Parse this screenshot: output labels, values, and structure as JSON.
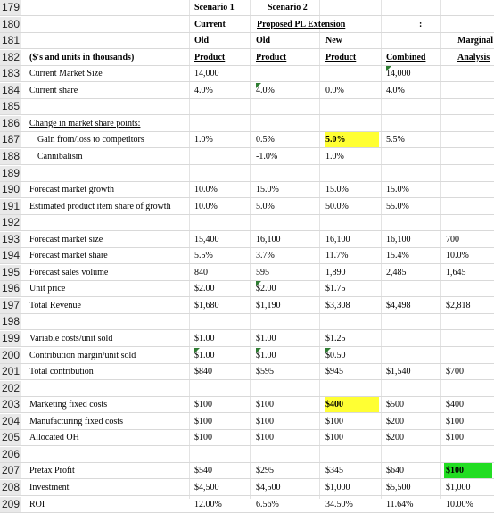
{
  "header_rows": [
    {
      "row": "179",
      "cells": [
        {
          "c": "c1",
          "t": "Scenario 1",
          "b": 1
        },
        {
          "c": "c3",
          "t": "Scenario 2",
          "b": 1
        }
      ]
    },
    {
      "row": "180",
      "cells": [
        {
          "c": "c1",
          "t": "Current",
          "b": 1
        },
        {
          "c": "c2",
          "t": "Proposed PL Extension",
          "b": 1,
          "u": 1
        },
        {
          "c": "c4",
          "t": ":",
          "b": 1
        }
      ]
    },
    {
      "row": "181",
      "cells": [
        {
          "c": "c1",
          "t": "Old",
          "b": 1
        },
        {
          "c": "c2",
          "t": "Old",
          "b": 1
        },
        {
          "c": "c3",
          "t": "New",
          "b": 1
        },
        {
          "c": "c5",
          "t": "Marginal",
          "b": 1
        }
      ]
    },
    {
      "row": "182",
      "cells": [
        {
          "c": "c0",
          "t": "($'s and units in thousands)",
          "b": 1
        },
        {
          "c": "c1",
          "t": "Product",
          "b": 1,
          "u": 1
        },
        {
          "c": "c2",
          "t": "Product",
          "b": 1,
          "u": 1
        },
        {
          "c": "c3",
          "t": "Product",
          "b": 1,
          "u": 1
        },
        {
          "c": "c4",
          "t": "Combined",
          "b": 1,
          "u": 1
        },
        {
          "c": "c5",
          "t": "Analysis",
          "b": 1,
          "u": 1
        }
      ]
    }
  ],
  "rows": [
    {
      "row": "183",
      "cells": [
        {
          "c": "c0",
          "t": "Current Market Size"
        },
        {
          "c": "c1",
          "t": "14,000"
        },
        {
          "c": "c4",
          "t": "14,000",
          "tri": 1
        }
      ]
    },
    {
      "row": "184",
      "cells": [
        {
          "c": "c0",
          "t": "Current share"
        },
        {
          "c": "c1",
          "t": "4.0%"
        },
        {
          "c": "c2",
          "t": "4.0%",
          "tri": 1
        },
        {
          "c": "c3",
          "t": "0.0%"
        },
        {
          "c": "c4",
          "t": "4.0%"
        }
      ]
    },
    {
      "row": "185",
      "cells": []
    },
    {
      "row": "186",
      "cells": [
        {
          "c": "c0",
          "t": "Change in market share points:",
          "u": 1
        }
      ]
    },
    {
      "row": "187",
      "cells": [
        {
          "c": "c0i",
          "t": "Gain from/loss to competitors"
        },
        {
          "c": "c1",
          "t": "1.0%"
        },
        {
          "c": "c2",
          "t": "0.5%"
        },
        {
          "c": "c3",
          "t": "5.0%",
          "b": 1,
          "hl": "y"
        },
        {
          "c": "c4",
          "t": "5.5%"
        }
      ]
    },
    {
      "row": "188",
      "cells": [
        {
          "c": "c0i",
          "t": "Cannibalism"
        },
        {
          "c": "c2",
          "t": "-1.0%"
        },
        {
          "c": "c3",
          "t": "1.0%"
        }
      ]
    },
    {
      "row": "189",
      "cells": []
    },
    {
      "row": "190",
      "cells": [
        {
          "c": "c0",
          "t": "Forecast market growth"
        },
        {
          "c": "c1m",
          "t": "10.0%"
        },
        {
          "c": "c2",
          "t": "15.0%"
        },
        {
          "c": "c3",
          "t": "15.0%"
        },
        {
          "c": "c4",
          "t": "15.0%"
        }
      ]
    },
    {
      "row": "191",
      "cells": [
        {
          "c": "c0",
          "t": "Estimated product item share of growth"
        },
        {
          "c": "c1m",
          "t": "10.0%"
        },
        {
          "c": "c2",
          "t": "5.0%"
        },
        {
          "c": "c3",
          "t": "50.0%"
        },
        {
          "c": "c4",
          "t": "55.0%"
        }
      ]
    },
    {
      "row": "192",
      "cells": []
    },
    {
      "row": "193",
      "cells": [
        {
          "c": "c0",
          "t": "Forecast market size"
        },
        {
          "c": "c1",
          "t": "15,400"
        },
        {
          "c": "c2",
          "t": "16,100"
        },
        {
          "c": "c3",
          "t": "16,100"
        },
        {
          "c": "c4",
          "t": "16,100"
        },
        {
          "c": "c5",
          "t": "700"
        }
      ]
    },
    {
      "row": "194",
      "cells": [
        {
          "c": "c0",
          "t": "Forecast market share"
        },
        {
          "c": "c1",
          "t": "5.5%"
        },
        {
          "c": "c2",
          "t": "3.7%"
        },
        {
          "c": "c3",
          "t": "11.7%"
        },
        {
          "c": "c4",
          "t": "15.4%"
        },
        {
          "c": "c5",
          "t": "10.0%"
        }
      ]
    },
    {
      "row": "195",
      "cells": [
        {
          "c": "c0",
          "t": "Forecast sales volume"
        },
        {
          "c": "c1",
          "t": "840"
        },
        {
          "c": "c2",
          "t": "595"
        },
        {
          "c": "c3",
          "t": "1,890"
        },
        {
          "c": "c4",
          "t": "2,485"
        },
        {
          "c": "c5",
          "t": "1,645"
        }
      ]
    },
    {
      "row": "196",
      "cells": [
        {
          "c": "c0",
          "t": "Unit price"
        },
        {
          "c": "c1",
          "t": "$2.00"
        },
        {
          "c": "c2",
          "t": "$2.00",
          "tri": 1
        },
        {
          "c": "c3",
          "t": "$1.75"
        }
      ]
    },
    {
      "row": "197",
      "cells": [
        {
          "c": "c0",
          "t": "Total Revenue"
        },
        {
          "c": "c1",
          "t": "$1,680"
        },
        {
          "c": "c2",
          "t": "$1,190"
        },
        {
          "c": "c3",
          "t": "$3,308"
        },
        {
          "c": "c4",
          "t": "$4,498"
        },
        {
          "c": "c5",
          "t": "$2,818"
        }
      ]
    },
    {
      "row": "198",
      "cells": []
    },
    {
      "row": "199",
      "cells": [
        {
          "c": "c0",
          "t": "Variable costs/unit sold"
        },
        {
          "c": "c1",
          "t": "$1.00"
        },
        {
          "c": "c2",
          "t": "$1.00"
        },
        {
          "c": "c3",
          "t": "$1.25"
        }
      ]
    },
    {
      "row": "200",
      "cells": [
        {
          "c": "c0",
          "t": "Contribution margin/unit sold"
        },
        {
          "c": "c1",
          "t": "$1.00",
          "tri": 1
        },
        {
          "c": "c2",
          "t": "$1.00",
          "tri": 1
        },
        {
          "c": "c3",
          "t": "$0.50",
          "tri": 1
        }
      ]
    },
    {
      "row": "201",
      "cells": [
        {
          "c": "c0",
          "t": "Total contribution"
        },
        {
          "c": "c1",
          "t": "$840"
        },
        {
          "c": "c2",
          "t": "$595"
        },
        {
          "c": "c3",
          "t": "$945"
        },
        {
          "c": "c4",
          "t": "$1,540"
        },
        {
          "c": "c5",
          "t": "$700"
        }
      ]
    },
    {
      "row": "202",
      "cells": []
    },
    {
      "row": "203",
      "cells": [
        {
          "c": "c0",
          "t": "Marketing fixed costs"
        },
        {
          "c": "c1",
          "t": "$100"
        },
        {
          "c": "c2",
          "t": "$100"
        },
        {
          "c": "c3",
          "t": "$400",
          "b": 1,
          "hl": "y"
        },
        {
          "c": "c4",
          "t": "$500"
        },
        {
          "c": "c5",
          "t": "$400"
        }
      ]
    },
    {
      "row": "204",
      "cells": [
        {
          "c": "c0",
          "t": "Manufacturing fixed costs"
        },
        {
          "c": "c1",
          "t": "$100"
        },
        {
          "c": "c2",
          "t": "$100"
        },
        {
          "c": "c3",
          "t": "$100"
        },
        {
          "c": "c4",
          "t": "$200"
        },
        {
          "c": "c5",
          "t": "$100"
        }
      ]
    },
    {
      "row": "205",
      "cells": [
        {
          "c": "c0",
          "t": "Allocated OH"
        },
        {
          "c": "c1",
          "t": "$100"
        },
        {
          "c": "c2",
          "t": "$100"
        },
        {
          "c": "c3",
          "t": "$100"
        },
        {
          "c": "c4",
          "t": "$200"
        },
        {
          "c": "c5",
          "t": "$100"
        }
      ]
    },
    {
      "row": "206",
      "cells": []
    },
    {
      "row": "207",
      "cells": [
        {
          "c": "c0",
          "t": "Pretax Profit"
        },
        {
          "c": "c1",
          "t": "$540"
        },
        {
          "c": "c2",
          "t": "$295"
        },
        {
          "c": "c3",
          "t": "$345"
        },
        {
          "c": "c4",
          "t": "$640"
        },
        {
          "c": "c5",
          "t": "$100",
          "b": 1,
          "hl": "g"
        }
      ]
    },
    {
      "row": "208",
      "cells": [
        {
          "c": "c0",
          "t": "Investment"
        },
        {
          "c": "c1",
          "t": "$4,500"
        },
        {
          "c": "c2",
          "t": "$4,500"
        },
        {
          "c": "c3",
          "t": "$1,000"
        },
        {
          "c": "c4",
          "t": "$5,500"
        },
        {
          "c": "c5",
          "t": "$1,000"
        }
      ]
    },
    {
      "row": "209",
      "cells": [
        {
          "c": "c0",
          "t": "ROI"
        },
        {
          "c": "c1",
          "t": "12.00%"
        },
        {
          "c": "c2",
          "t": "6.56%"
        },
        {
          "c": "c3",
          "t": "34.50%"
        },
        {
          "c": "c4",
          "t": "11.64%"
        },
        {
          "c": "c5",
          "t": "10.00%"
        }
      ]
    }
  ],
  "colors": {
    "highlight_yellow": "#ffff33",
    "highlight_green": "#22dd22",
    "comment_marker": "#2e7d32"
  }
}
